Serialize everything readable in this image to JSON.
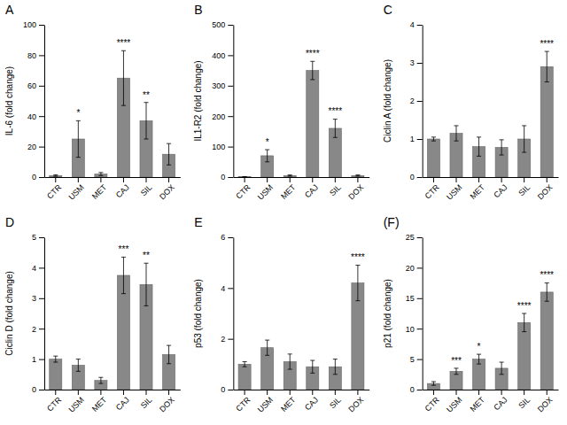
{
  "chart_data": [
    {
      "type": "bar",
      "title": "A",
      "y_label": "IL-6 (fold change)",
      "categories": [
        "CTR",
        "USM",
        "MET",
        "CAJ",
        "SIL",
        "DOX"
      ],
      "values": [
        1,
        25,
        2,
        65,
        37,
        15
      ],
      "errors": [
        0.5,
        12,
        1,
        18,
        12,
        7
      ],
      "annotations": [
        {
          "category": "USM",
          "text": "*"
        },
        {
          "category": "CAJ",
          "text": "****"
        },
        {
          "category": "SIL",
          "text": "**"
        }
      ],
      "color": "#888888",
      "ylim": [
        0,
        100
      ],
      "yticks": [
        0,
        20,
        40,
        60,
        80,
        100
      ]
    },
    {
      "type": "bar",
      "title": "B",
      "y_label": "IL1-R2 (fold change)",
      "categories": [
        "CTR",
        "USM",
        "MET",
        "CAJ",
        "SIL",
        "DOX"
      ],
      "values": [
        1,
        70,
        5,
        350,
        160,
        5
      ],
      "errors": [
        0.5,
        20,
        2,
        30,
        30,
        2
      ],
      "annotations": [
        {
          "category": "USM",
          "text": "*"
        },
        {
          "category": "CAJ",
          "text": "****"
        },
        {
          "category": "SIL",
          "text": "****"
        }
      ],
      "color": "#888888",
      "ylim": [
        0,
        500
      ],
      "yticks": [
        0,
        100,
        200,
        300,
        400,
        500
      ]
    },
    {
      "type": "bar",
      "title": "C",
      "y_label": "Ciclin A (fold change)",
      "categories": [
        "CTR",
        "USM",
        "MET",
        "CAJ",
        "SIL",
        "DOX"
      ],
      "values": [
        1,
        1.15,
        0.8,
        0.78,
        1.0,
        2.9
      ],
      "errors": [
        0.05,
        0.2,
        0.25,
        0.2,
        0.35,
        0.4
      ],
      "annotations": [
        {
          "category": "DOX",
          "text": "****"
        }
      ],
      "color": "#888888",
      "ylim": [
        0,
        4
      ],
      "yticks": [
        0,
        1,
        2,
        3,
        4
      ]
    },
    {
      "type": "bar",
      "title": "D",
      "y_label": "Ciclin D (fold change)",
      "categories": [
        "CTR",
        "USM",
        "MET",
        "CAJ",
        "SIL",
        "DOX"
      ],
      "values": [
        1,
        0.8,
        0.3,
        3.75,
        3.45,
        1.15
      ],
      "errors": [
        0.1,
        0.2,
        0.1,
        0.6,
        0.7,
        0.3
      ],
      "annotations": [
        {
          "category": "CAJ",
          "text": "***"
        },
        {
          "category": "SIL",
          "text": "**"
        }
      ],
      "color": "#888888",
      "ylim": [
        0,
        5
      ],
      "yticks": [
        0,
        1,
        2,
        3,
        4,
        5
      ]
    },
    {
      "type": "bar",
      "title": "E",
      "y_label": "p53 (fold change)",
      "categories": [
        "CTR",
        "USM",
        "MET",
        "CAJ",
        "SIL",
        "DOX"
      ],
      "values": [
        1,
        1.65,
        1.1,
        0.9,
        0.9,
        4.2
      ],
      "errors": [
        0.1,
        0.3,
        0.3,
        0.25,
        0.3,
        0.7
      ],
      "annotations": [
        {
          "category": "DOX",
          "text": "****"
        }
      ],
      "color": "#888888",
      "ylim": [
        0,
        6
      ],
      "yticks": [
        0,
        2,
        4,
        6
      ]
    },
    {
      "type": "bar",
      "title": "(F)",
      "y_label": "p21 (fold change)",
      "categories": [
        "CTR",
        "USM",
        "MET",
        "CAJ",
        "SIL",
        "DOX"
      ],
      "values": [
        1,
        3,
        5,
        3.5,
        11,
        16
      ],
      "errors": [
        0.3,
        0.5,
        0.8,
        1.0,
        1.5,
        1.5
      ],
      "annotations": [
        {
          "category": "USM",
          "text": "***"
        },
        {
          "category": "MET",
          "text": "*"
        },
        {
          "category": "SIL",
          "text": "****"
        },
        {
          "category": "DOX",
          "text": "****"
        }
      ],
      "color": "#888888",
      "ylim": [
        0,
        25
      ],
      "yticks": [
        0,
        5,
        10,
        15,
        20,
        25
      ]
    }
  ]
}
